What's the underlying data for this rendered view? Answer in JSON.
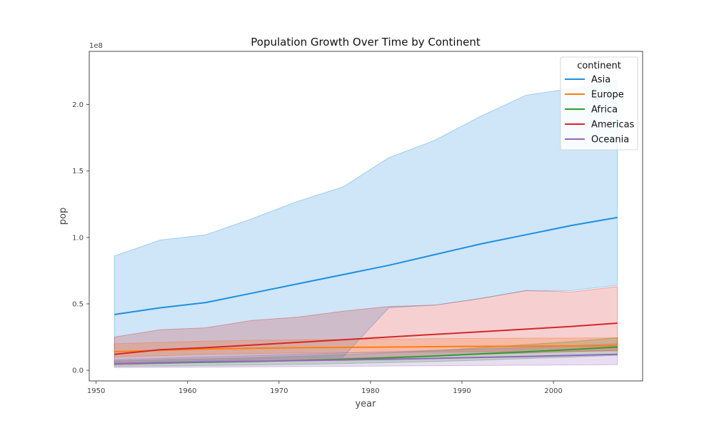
{
  "chart_data": {
    "type": "line",
    "title": "Population Growth Over Time by Continent",
    "xlabel": "year",
    "ylabel": "pop",
    "y_scale_label": "1e8",
    "xlim": [
      1949.25,
      2009.75
    ],
    "ylim": [
      -0.08,
      2.4
    ],
    "x_ticks": [
      1950,
      1960,
      1970,
      1980,
      1990,
      2000
    ],
    "x_tick_labels": [
      "1950",
      "1960",
      "1970",
      "1980",
      "1990",
      "2000"
    ],
    "y_ticks": [
      0.0,
      0.5,
      1.0,
      1.5,
      2.0
    ],
    "y_tick_labels": [
      "0.0",
      "0.5",
      "1.0",
      "1.5",
      "2.0"
    ],
    "grid": false,
    "legend_title": "continent",
    "legend_position": "top-right",
    "x": [
      1952,
      1957,
      1962,
      1967,
      1972,
      1977,
      1982,
      1987,
      1992,
      1997,
      2002,
      2007
    ],
    "series": [
      {
        "name": "Asia",
        "color": "#1f8fe0",
        "band_opacity": 0.22,
        "values": [
          0.42,
          0.47,
          0.51,
          0.58,
          0.65,
          0.72,
          0.79,
          0.87,
          0.95,
          1.02,
          1.09,
          1.15
        ],
        "lower": [
          0.05,
          0.06,
          0.07,
          0.08,
          0.09,
          0.1,
          0.47,
          0.49,
          0.54,
          0.6,
          0.6,
          0.64
        ],
        "upper": [
          0.86,
          0.98,
          1.02,
          1.14,
          1.27,
          1.38,
          1.6,
          1.73,
          1.91,
          2.07,
          2.12,
          2.18
        ]
      },
      {
        "name": "Europe",
        "color": "#ff7f0e",
        "band_opacity": 0.22,
        "values": [
          0.14,
          0.15,
          0.16,
          0.165,
          0.17,
          0.172,
          0.175,
          0.178,
          0.18,
          0.182,
          0.183,
          0.185
        ],
        "lower": [
          0.1,
          0.11,
          0.12,
          0.125,
          0.13,
          0.132,
          0.135,
          0.138,
          0.14,
          0.142,
          0.143,
          0.145
        ],
        "upper": [
          0.2,
          0.21,
          0.22,
          0.225,
          0.23,
          0.232,
          0.235,
          0.238,
          0.24,
          0.242,
          0.243,
          0.245
        ]
      },
      {
        "name": "Africa",
        "color": "#2ca02c",
        "band_opacity": 0.22,
        "values": [
          0.05,
          0.055,
          0.06,
          0.066,
          0.074,
          0.083,
          0.094,
          0.107,
          0.123,
          0.139,
          0.156,
          0.175
        ],
        "lower": [
          0.03,
          0.032,
          0.036,
          0.04,
          0.045,
          0.05,
          0.058,
          0.066,
          0.076,
          0.088,
          0.1,
          0.113
        ],
        "upper": [
          0.07,
          0.077,
          0.085,
          0.094,
          0.105,
          0.117,
          0.131,
          0.148,
          0.17,
          0.193,
          0.216,
          0.245
        ]
      },
      {
        "name": "Americas",
        "color": "#d62728",
        "band_opacity": 0.22,
        "values": [
          0.12,
          0.155,
          0.17,
          0.19,
          0.21,
          0.23,
          0.25,
          0.27,
          0.29,
          0.31,
          0.33,
          0.355
        ],
        "lower": [
          0.04,
          0.05,
          0.06,
          0.07,
          0.08,
          0.09,
          0.1,
          0.11,
          0.12,
          0.13,
          0.14,
          0.15
        ],
        "upper": [
          0.25,
          0.305,
          0.32,
          0.375,
          0.4,
          0.445,
          0.48,
          0.49,
          0.54,
          0.6,
          0.59,
          0.63
        ]
      },
      {
        "name": "Oceania",
        "color": "#9467bd",
        "band_opacity": 0.22,
        "values": [
          0.05,
          0.057,
          0.063,
          0.068,
          0.073,
          0.078,
          0.083,
          0.09,
          0.097,
          0.104,
          0.112,
          0.12
        ],
        "lower": [
          0.02,
          0.022,
          0.024,
          0.026,
          0.028,
          0.03,
          0.032,
          0.034,
          0.036,
          0.038,
          0.04,
          0.042
        ],
        "upper": [
          0.08,
          0.09,
          0.1,
          0.11,
          0.12,
          0.13,
          0.14,
          0.15,
          0.16,
          0.17,
          0.185,
          0.2
        ]
      }
    ]
  }
}
